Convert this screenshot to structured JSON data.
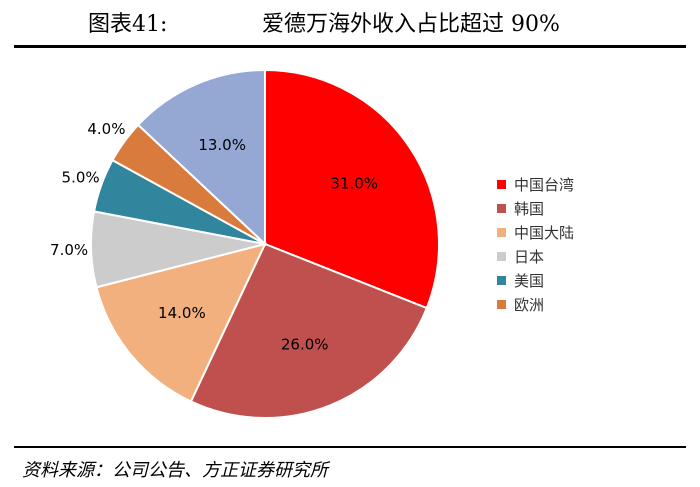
{
  "header": {
    "figure_label": "图表41:",
    "title": "爱德万海外收入占比超过 90%"
  },
  "source": "资料来源：公司公告、方正证券研究所",
  "chart_data": {
    "type": "pie",
    "categories": [
      "中国台湾",
      "韩国",
      "中国大陆",
      "日本",
      "美国",
      "欧洲",
      ""
    ],
    "values": [
      31.0,
      26.0,
      14.0,
      7.0,
      5.0,
      4.0,
      13.0
    ],
    "data_labels": [
      "31.0%",
      "26.0%",
      "14.0%",
      "7.0%",
      "5.0%",
      "4.0%",
      "13.0%"
    ],
    "colors": [
      "#ff0000",
      "#c0504d",
      "#f2b07e",
      "#cccccc",
      "#31859c",
      "#d97b3c",
      "#95a8d4"
    ],
    "legend_position": "right",
    "start": "12 o'clock",
    "direction": "clockwise"
  }
}
